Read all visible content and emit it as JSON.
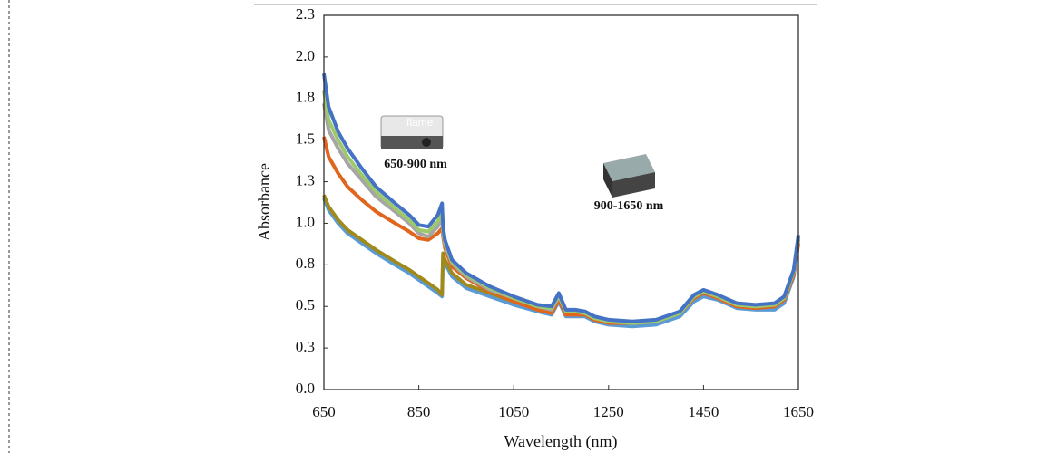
{
  "chart_data": {
    "type": "line",
    "xlabel": "Wavelength (nm)",
    "ylabel": "Absorbance",
    "annotations": [
      "flame",
      "650-900 nm",
      "900-1650 nm"
    ],
    "x": [
      650,
      660,
      680,
      700,
      730,
      760,
      800,
      830,
      850,
      870,
      890,
      899,
      901,
      905,
      920,
      950,
      1000,
      1050,
      1100,
      1130,
      1145,
      1160,
      1180,
      1200,
      1220,
      1250,
      1300,
      1350,
      1400,
      1430,
      1450,
      1480,
      1520,
      1560,
      1600,
      1620,
      1640,
      1650
    ],
    "series": [
      {
        "color": "#5b9bd5",
        "values": [
          1.15,
          1.08,
          1.0,
          0.94,
          0.88,
          0.82,
          0.75,
          0.7,
          0.66,
          0.62,
          0.58,
          0.56,
          0.8,
          0.76,
          0.68,
          0.61,
          0.56,
          0.51,
          0.47,
          0.45,
          0.53,
          0.44,
          0.44,
          0.44,
          0.41,
          0.39,
          0.38,
          0.39,
          0.44,
          0.53,
          0.56,
          0.54,
          0.49,
          0.48,
          0.48,
          0.52,
          0.68,
          0.88
        ]
      },
      {
        "color": "#a08a1c",
        "values": [
          1.17,
          1.1,
          1.02,
          0.96,
          0.9,
          0.84,
          0.77,
          0.72,
          0.68,
          0.64,
          0.6,
          0.57,
          0.82,
          0.78,
          0.7,
          0.63,
          0.58,
          0.53,
          0.49,
          0.47,
          0.55,
          0.46,
          0.46,
          0.46,
          0.43,
          0.41,
          0.4,
          0.41,
          0.46,
          0.55,
          0.58,
          0.56,
          0.51,
          0.5,
          0.5,
          0.54,
          0.7,
          0.9
        ]
      },
      {
        "color": "#e0661d",
        "values": [
          1.52,
          1.4,
          1.3,
          1.22,
          1.14,
          1.07,
          1.0,
          0.95,
          0.91,
          0.9,
          0.94,
          0.97,
          0.92,
          0.85,
          0.74,
          0.67,
          0.59,
          0.53,
          0.48,
          0.46,
          0.54,
          0.45,
          0.45,
          0.45,
          0.42,
          0.4,
          0.4,
          0.41,
          0.46,
          0.55,
          0.58,
          0.55,
          0.5,
          0.49,
          0.5,
          0.54,
          0.69,
          0.88
        ]
      },
      {
        "color": "#a5a5a5",
        "values": [
          1.72,
          1.56,
          1.45,
          1.36,
          1.26,
          1.16,
          1.07,
          1.0,
          0.94,
          0.92,
          0.98,
          1.04,
          0.94,
          0.87,
          0.76,
          0.68,
          0.6,
          0.55,
          0.5,
          0.48,
          0.56,
          0.47,
          0.47,
          0.46,
          0.43,
          0.41,
          0.4,
          0.41,
          0.46,
          0.56,
          0.59,
          0.56,
          0.51,
          0.5,
          0.51,
          0.55,
          0.71,
          0.91
        ]
      },
      {
        "color": "#9dc96c",
        "values": [
          1.8,
          1.62,
          1.5,
          1.4,
          1.29,
          1.19,
          1.09,
          1.02,
          0.96,
          0.95,
          1.01,
          1.07,
          0.96,
          0.89,
          0.77,
          0.69,
          0.61,
          0.55,
          0.5,
          0.49,
          0.57,
          0.47,
          0.47,
          0.46,
          0.43,
          0.41,
          0.4,
          0.41,
          0.46,
          0.56,
          0.59,
          0.56,
          0.51,
          0.5,
          0.51,
          0.55,
          0.71,
          0.92
        ]
      },
      {
        "color": "#4472c4",
        "values": [
          1.9,
          1.7,
          1.55,
          1.45,
          1.33,
          1.22,
          1.12,
          1.05,
          0.99,
          0.98,
          1.05,
          1.12,
          0.98,
          0.9,
          0.78,
          0.7,
          0.62,
          0.56,
          0.51,
          0.5,
          0.58,
          0.48,
          0.48,
          0.47,
          0.44,
          0.42,
          0.41,
          0.42,
          0.47,
          0.57,
          0.6,
          0.57,
          0.52,
          0.51,
          0.52,
          0.56,
          0.72,
          0.93
        ]
      }
    ],
    "xlim": [
      650,
      1650
    ],
    "xticks": [
      650,
      850,
      1050,
      1250,
      1450,
      1650
    ],
    "ylim": [
      0,
      2.25
    ],
    "yticks": [
      {
        "value": 0,
        "label": "0.0"
      },
      {
        "value": 0.25,
        "label": "0.3"
      },
      {
        "value": 0.5,
        "label": "0.5"
      },
      {
        "value": 0.75,
        "label": "0.8"
      },
      {
        "value": 1,
        "label": "1.0"
      },
      {
        "value": 1.25,
        "label": "1.3"
      },
      {
        "value": 1.5,
        "label": "1.5"
      },
      {
        "value": 1.75,
        "label": "1.8"
      },
      {
        "value": 2,
        "label": "2.0"
      },
      {
        "value": 2.25,
        "label": "2.3"
      }
    ],
    "grid": false
  }
}
